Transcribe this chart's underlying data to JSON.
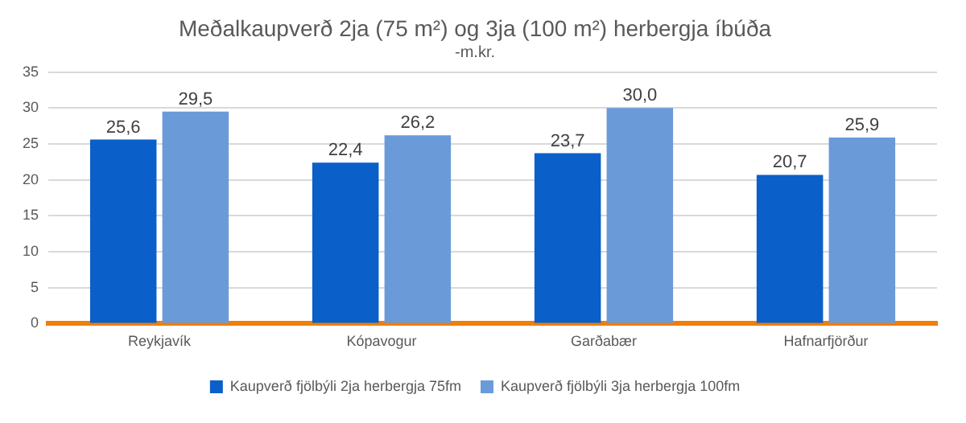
{
  "chart_data": {
    "type": "bar",
    "title": "Meðalkaupverð 2ja (75 m²) og 3ja (100 m²) herbergja íbúða",
    "subtitle": "-m.kr.",
    "categories": [
      "Reykjavík",
      "Kópavogur",
      "Garðabær",
      "Hafnarfjörður"
    ],
    "series": [
      {
        "name": "Kaupverð fjölbýli 2ja herbergja 75fm",
        "color": "#0b5fc9",
        "values": [
          25.6,
          22.4,
          23.7,
          20.7
        ],
        "value_labels": [
          "25,6",
          "22,4",
          "23,7",
          "20,7"
        ]
      },
      {
        "name": "Kaupverð fjölbýli 3ja herbergja 100fm",
        "color": "#6b9ad9",
        "values": [
          29.5,
          26.2,
          30.0,
          25.9
        ],
        "value_labels": [
          "29,5",
          "26,2",
          "30,0",
          "25,9"
        ]
      }
    ],
    "ylim": [
      0,
      35
    ],
    "yticks": [
      0,
      5,
      10,
      15,
      20,
      25,
      30,
      35
    ],
    "grid": "y",
    "legend": "bottom"
  }
}
